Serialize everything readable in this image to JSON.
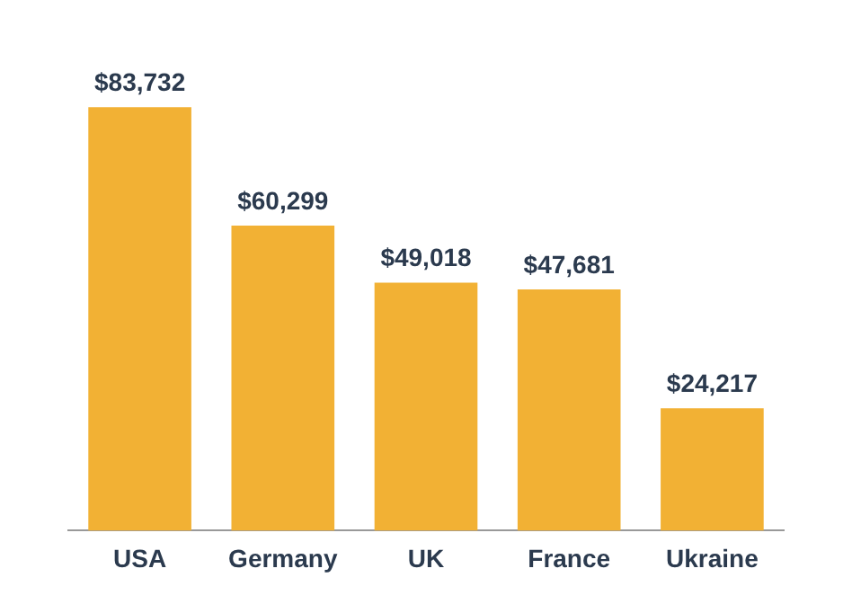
{
  "chart_data": {
    "type": "bar",
    "categories": [
      "USA",
      "Germany",
      "UK",
      "France",
      "Ukraine"
    ],
    "values": [
      83732,
      60299,
      49018,
      47681,
      24217
    ],
    "value_labels": [
      "$83,732",
      "$60,299",
      "$49,018",
      "$47,681",
      "$24,217"
    ],
    "color": "#f2b134",
    "grid": false,
    "legend": false
  }
}
